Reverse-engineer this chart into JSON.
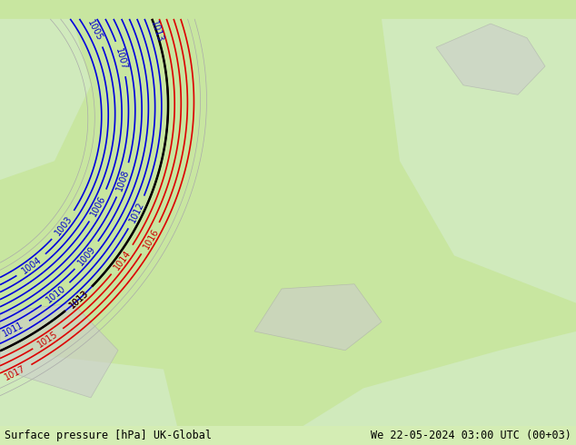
{
  "title_left": "Surface pressure [hPa] UK-Global",
  "title_right": "We 22-05-2024 03:00 UTC (00+03)",
  "bg_color": "#c8e6a0",
  "land_color": "#c8e6a0",
  "sea_color": "#d0e8d0",
  "figsize": [
    6.34,
    4.9
  ],
  "dpi": 100,
  "font_color_blue": "#0000cc",
  "font_color_red": "#cc0000",
  "font_color_black": "#000000",
  "font_color_gray": "#888888",
  "footer_bg": "#e8f4e8",
  "contour_blue": "#0000dd",
  "contour_red": "#dd0000",
  "contour_black": "#000000",
  "contour_gray": "#aaaaaa"
}
